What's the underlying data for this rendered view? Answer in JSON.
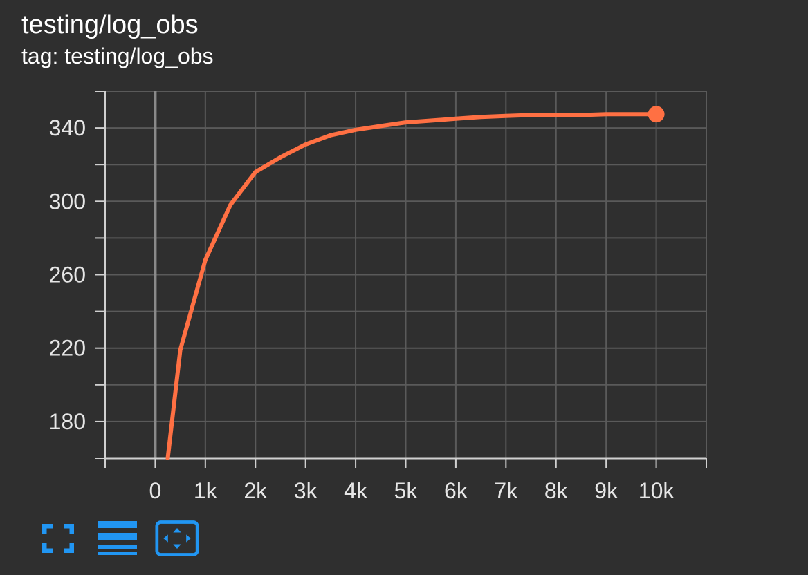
{
  "card": {
    "title": "testing/log_obs",
    "tag": "tag: testing/log_obs"
  },
  "colors": {
    "background": "#2f2f2f",
    "series": "#ff7043",
    "grid": "#5a5a5a",
    "axis": "#d0d0d0",
    "toolbar": "#2196f3"
  },
  "toolbar": {
    "buttons": [
      {
        "name": "fullscreen-icon"
      },
      {
        "name": "list-lines-icon"
      },
      {
        "name": "fit-domain-icon"
      }
    ]
  },
  "chart_data": {
    "type": "line",
    "title": "",
    "xlabel": "",
    "ylabel": "",
    "xlim": [
      -1000,
      11000
    ],
    "ylim": [
      160,
      360
    ],
    "x_ticks": [
      0,
      1000,
      2000,
      3000,
      4000,
      5000,
      6000,
      7000,
      8000,
      9000,
      10000
    ],
    "x_tick_labels": [
      "0",
      "1k",
      "2k",
      "3k",
      "4k",
      "5k",
      "6k",
      "7k",
      "8k",
      "9k",
      "10k"
    ],
    "y_ticks": [
      180,
      220,
      260,
      300,
      340
    ],
    "y_tick_labels": [
      "180",
      "220",
      "260",
      "300",
      "340"
    ],
    "grid": true,
    "series": [
      {
        "x": [
          250,
          500,
          1000,
          1500,
          2000,
          2500,
          3000,
          3500,
          4000,
          4500,
          5000,
          5500,
          6000,
          6500,
          7000,
          7500,
          8000,
          8500,
          9000,
          9500,
          10000
        ],
        "y": [
          160,
          219,
          268,
          298,
          316,
          324,
          331,
          336,
          339,
          341,
          343,
          344,
          345,
          346,
          346.5,
          347,
          347,
          347,
          347.5,
          347.5,
          347.5
        ]
      }
    ]
  }
}
